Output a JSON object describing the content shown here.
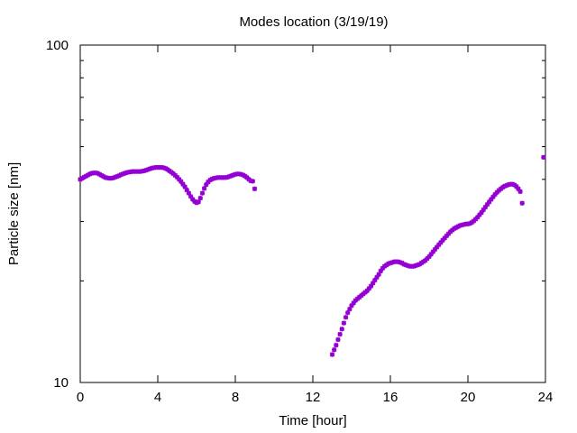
{
  "chart_data": {
    "type": "scatter",
    "title": "Modes location (3/19/19)",
    "xlabel": "Time [hour]",
    "ylabel": "Particle size [nm]",
    "xlim": [
      0,
      24
    ],
    "ylim": [
      10,
      100
    ],
    "yscale": "log",
    "grid": false,
    "legend": "none",
    "marker_color": "#9400d3",
    "x_ticks": [
      0,
      4,
      8,
      12,
      16,
      20,
      24
    ],
    "x_tick_labels": [
      "0",
      "4",
      "8",
      "12",
      "16",
      "20",
      "24"
    ],
    "y_tick_labels": [
      {
        "value": 10,
        "label": "10"
      },
      {
        "value": 100,
        "label": "100"
      }
    ],
    "series": [
      {
        "values": [
          [
            0.0,
            40.0
          ],
          [
            0.1,
            40.3
          ],
          [
            0.2,
            40.6
          ],
          [
            0.3,
            40.9
          ],
          [
            0.4,
            41.2
          ],
          [
            0.5,
            41.5
          ],
          [
            0.6,
            41.7
          ],
          [
            0.7,
            41.8
          ],
          [
            0.8,
            41.8
          ],
          [
            0.9,
            41.7
          ],
          [
            1.0,
            41.4
          ],
          [
            1.1,
            41.1
          ],
          [
            1.2,
            40.8
          ],
          [
            1.3,
            40.5
          ],
          [
            1.4,
            40.4
          ],
          [
            1.5,
            40.3
          ],
          [
            1.6,
            40.3
          ],
          [
            1.7,
            40.4
          ],
          [
            1.8,
            40.6
          ],
          [
            1.9,
            40.8
          ],
          [
            2.0,
            41.0
          ],
          [
            2.1,
            41.3
          ],
          [
            2.2,
            41.5
          ],
          [
            2.3,
            41.7
          ],
          [
            2.4,
            41.9
          ],
          [
            2.5,
            42.0
          ],
          [
            2.6,
            42.1
          ],
          [
            2.7,
            42.2
          ],
          [
            2.8,
            42.2
          ],
          [
            2.9,
            42.2
          ],
          [
            3.0,
            42.2
          ],
          [
            3.1,
            42.2
          ],
          [
            3.2,
            42.3
          ],
          [
            3.3,
            42.4
          ],
          [
            3.4,
            42.6
          ],
          [
            3.5,
            42.8
          ],
          [
            3.6,
            43.0
          ],
          [
            3.7,
            43.2
          ],
          [
            3.8,
            43.3
          ],
          [
            3.9,
            43.4
          ],
          [
            4.0,
            43.4
          ],
          [
            4.1,
            43.4
          ],
          [
            4.2,
            43.4
          ],
          [
            4.3,
            43.3
          ],
          [
            4.4,
            43.1
          ],
          [
            4.5,
            42.8
          ],
          [
            4.6,
            42.4
          ],
          [
            4.7,
            42.0
          ],
          [
            4.8,
            41.6
          ],
          [
            4.9,
            41.1
          ],
          [
            5.0,
            40.6
          ],
          [
            5.1,
            40.0
          ],
          [
            5.2,
            39.4
          ],
          [
            5.3,
            38.7
          ],
          [
            5.4,
            38.0
          ],
          [
            5.5,
            37.2
          ],
          [
            5.6,
            36.4
          ],
          [
            5.7,
            35.6
          ],
          [
            5.8,
            34.9
          ],
          [
            5.9,
            34.4
          ],
          [
            6.0,
            34.1
          ],
          [
            6.1,
            34.3
          ],
          [
            6.2,
            35.2
          ],
          [
            6.3,
            36.4
          ],
          [
            6.4,
            37.6
          ],
          [
            6.5,
            38.6
          ],
          [
            6.6,
            39.3
          ],
          [
            6.7,
            39.8
          ],
          [
            6.8,
            40.1
          ],
          [
            6.9,
            40.3
          ],
          [
            7.0,
            40.4
          ],
          [
            7.1,
            40.5
          ],
          [
            7.2,
            40.5
          ],
          [
            7.3,
            40.5
          ],
          [
            7.4,
            40.5
          ],
          [
            7.5,
            40.5
          ],
          [
            7.6,
            40.6
          ],
          [
            7.7,
            40.8
          ],
          [
            7.8,
            41.0
          ],
          [
            7.9,
            41.2
          ],
          [
            8.0,
            41.4
          ],
          [
            8.1,
            41.5
          ],
          [
            8.2,
            41.5
          ],
          [
            8.3,
            41.4
          ],
          [
            8.4,
            41.2
          ],
          [
            8.5,
            40.9
          ],
          [
            8.6,
            40.5
          ],
          [
            8.7,
            40.0
          ],
          [
            8.8,
            39.6
          ],
          [
            8.9,
            39.5
          ],
          [
            9.0,
            37.5
          ],
          [
            13.0,
            12.1
          ],
          [
            13.1,
            12.5
          ],
          [
            13.2,
            12.9
          ],
          [
            13.3,
            13.4
          ],
          [
            13.4,
            13.9
          ],
          [
            13.5,
            14.4
          ],
          [
            13.6,
            15.0
          ],
          [
            13.7,
            15.6
          ],
          [
            13.8,
            16.1
          ],
          [
            13.9,
            16.5
          ],
          [
            14.0,
            16.9
          ],
          [
            14.1,
            17.2
          ],
          [
            14.2,
            17.5
          ],
          [
            14.3,
            17.7
          ],
          [
            14.4,
            17.9
          ],
          [
            14.5,
            18.1
          ],
          [
            14.6,
            18.3
          ],
          [
            14.7,
            18.5
          ],
          [
            14.8,
            18.7
          ],
          [
            14.9,
            19.0
          ],
          [
            15.0,
            19.3
          ],
          [
            15.1,
            19.7
          ],
          [
            15.2,
            20.1
          ],
          [
            15.3,
            20.5
          ],
          [
            15.4,
            20.9
          ],
          [
            15.5,
            21.4
          ],
          [
            15.6,
            21.8
          ],
          [
            15.7,
            22.1
          ],
          [
            15.8,
            22.3
          ],
          [
            15.9,
            22.5
          ],
          [
            16.0,
            22.6
          ],
          [
            16.1,
            22.7
          ],
          [
            16.2,
            22.8
          ],
          [
            16.3,
            22.8
          ],
          [
            16.4,
            22.8
          ],
          [
            16.5,
            22.7
          ],
          [
            16.6,
            22.6
          ],
          [
            16.7,
            22.4
          ],
          [
            16.8,
            22.3
          ],
          [
            16.9,
            22.2
          ],
          [
            17.0,
            22.1
          ],
          [
            17.1,
            22.1
          ],
          [
            17.2,
            22.1
          ],
          [
            17.3,
            22.2
          ],
          [
            17.4,
            22.3
          ],
          [
            17.5,
            22.4
          ],
          [
            17.6,
            22.6
          ],
          [
            17.7,
            22.8
          ],
          [
            17.8,
            23.0
          ],
          [
            17.9,
            23.3
          ],
          [
            18.0,
            23.6
          ],
          [
            18.1,
            24.0
          ],
          [
            18.2,
            24.4
          ],
          [
            18.3,
            24.8
          ],
          [
            18.4,
            25.2
          ],
          [
            18.5,
            25.6
          ],
          [
            18.6,
            26.0
          ],
          [
            18.7,
            26.4
          ],
          [
            18.8,
            26.8
          ],
          [
            18.9,
            27.2
          ],
          [
            19.0,
            27.6
          ],
          [
            19.1,
            28.0
          ],
          [
            19.2,
            28.3
          ],
          [
            19.3,
            28.6
          ],
          [
            19.4,
            28.8
          ],
          [
            19.5,
            29.0
          ],
          [
            19.6,
            29.2
          ],
          [
            19.7,
            29.3
          ],
          [
            19.8,
            29.4
          ],
          [
            19.9,
            29.5
          ],
          [
            20.0,
            29.5
          ],
          [
            20.1,
            29.6
          ],
          [
            20.2,
            29.8
          ],
          [
            20.3,
            30.1
          ],
          [
            20.4,
            30.5
          ],
          [
            20.5,
            30.9
          ],
          [
            20.6,
            31.4
          ],
          [
            20.7,
            31.9
          ],
          [
            20.8,
            32.5
          ],
          [
            20.9,
            33.1
          ],
          [
            21.0,
            33.7
          ],
          [
            21.1,
            34.3
          ],
          [
            21.2,
            34.9
          ],
          [
            21.3,
            35.5
          ],
          [
            21.4,
            36.1
          ],
          [
            21.5,
            36.6
          ],
          [
            21.6,
            37.1
          ],
          [
            21.7,
            37.5
          ],
          [
            21.8,
            37.9
          ],
          [
            21.9,
            38.2
          ],
          [
            22.0,
            38.4
          ],
          [
            22.1,
            38.6
          ],
          [
            22.2,
            38.7
          ],
          [
            22.3,
            38.7
          ],
          [
            22.4,
            38.5
          ],
          [
            22.5,
            38.1
          ],
          [
            22.6,
            37.5
          ],
          [
            22.7,
            36.8
          ],
          [
            22.8,
            34.0
          ],
          [
            23.9,
            46.5
          ]
        ]
      }
    ]
  }
}
